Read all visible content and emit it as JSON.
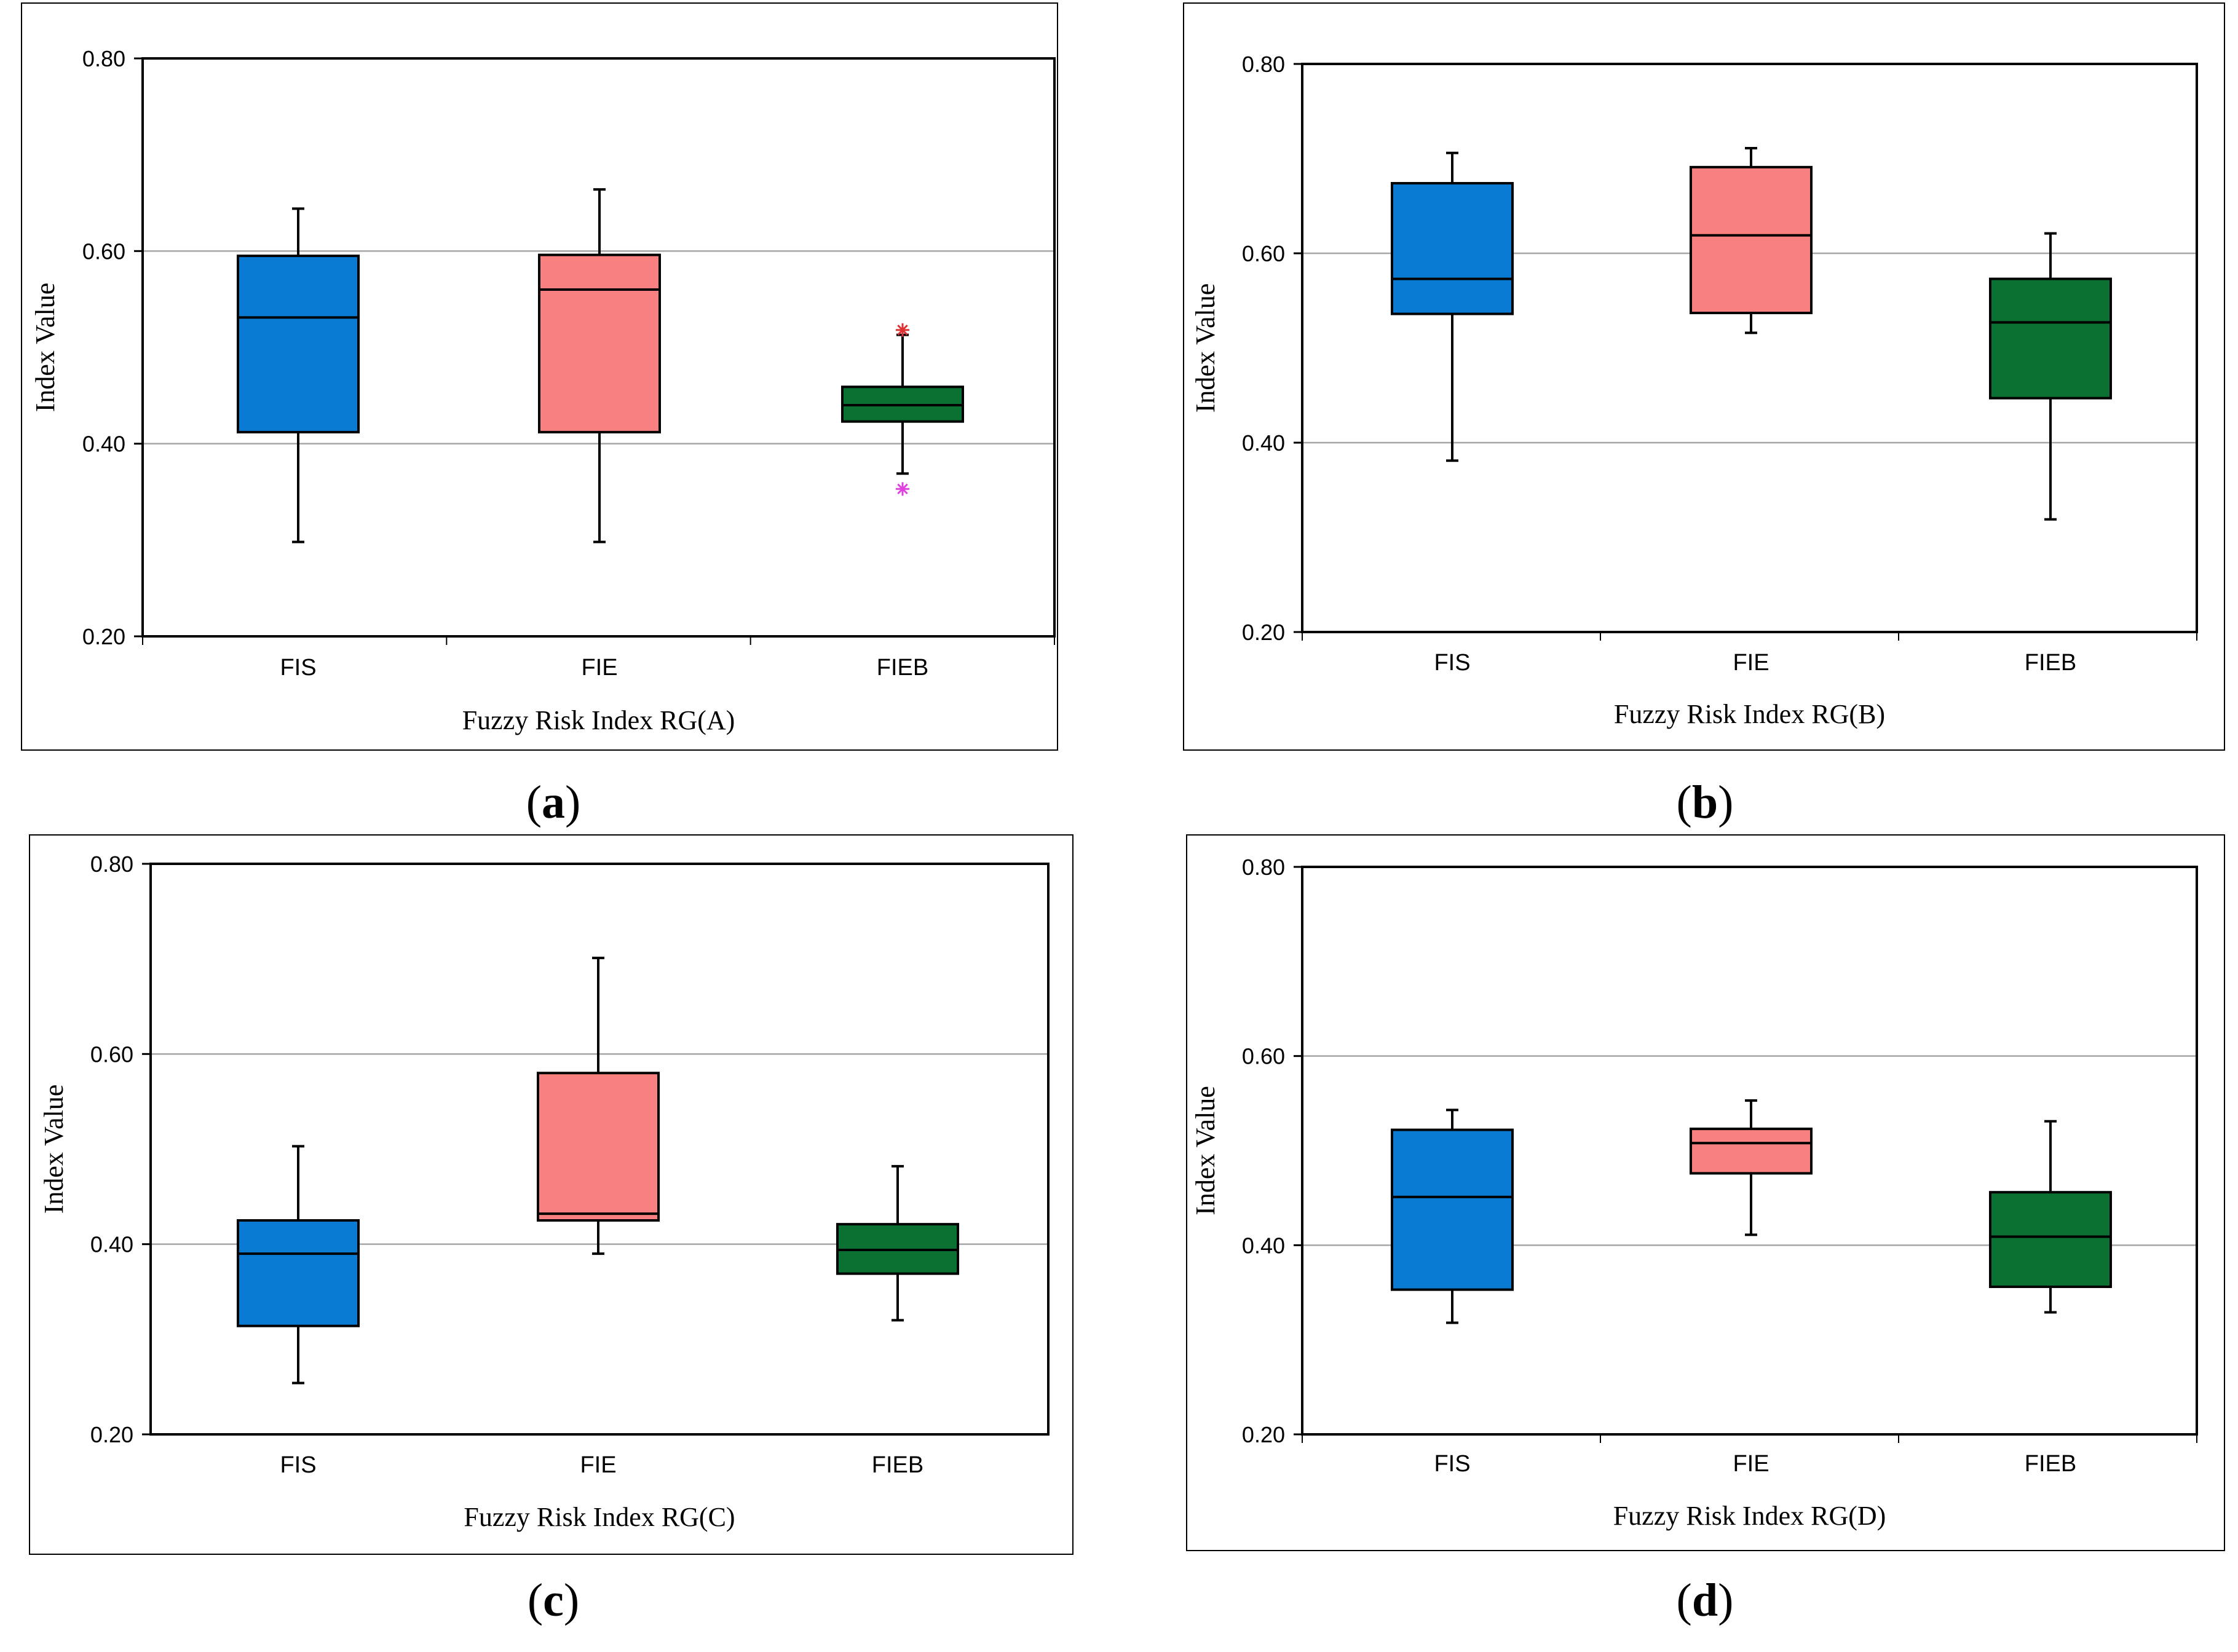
{
  "figure": {
    "panels": [
      "a",
      "b",
      "c",
      "d"
    ]
  },
  "colors": {
    "FIS": "#0a7bd2",
    "FIE": "#f88080",
    "FIEB": "#0a7132",
    "outlier_high": "#e03030",
    "outlier_low": "#e040e0",
    "gridline": "#a6a6a6",
    "axis": "#000000"
  },
  "chart_data": [
    {
      "type": "box",
      "panel_label": "a",
      "title": "",
      "xlabel": "Fuzzy Risk Index RG(A)",
      "ylabel": "Index Value",
      "ylim": [
        0.2,
        0.8
      ],
      "yticks": [
        "0.20",
        "0.40",
        "0.60",
        "0.80"
      ],
      "categories": [
        "FIS",
        "FIE",
        "FIEB"
      ],
      "series": [
        {
          "name": "FIS",
          "min": 0.298,
          "q1": 0.412,
          "median": 0.531,
          "q3": 0.595,
          "max": 0.644,
          "outliers": []
        },
        {
          "name": "FIE",
          "min": 0.298,
          "q1": 0.412,
          "median": 0.56,
          "q3": 0.596,
          "max": 0.664,
          "outliers": []
        },
        {
          "name": "FIEB",
          "min": 0.369,
          "q1": 0.423,
          "median": 0.44,
          "q3": 0.459,
          "max": 0.513,
          "outliers": [
            0.518,
            0.353
          ]
        }
      ],
      "grid": true,
      "xtick_dividers": true
    },
    {
      "type": "box",
      "panel_label": "b",
      "title": "",
      "xlabel": "Fuzzy Risk Index RG(B)",
      "ylabel": "Index Value",
      "ylim": [
        0.2,
        0.8
      ],
      "yticks": [
        "0.20",
        "0.40",
        "0.60",
        "0.80"
      ],
      "categories": [
        "FIS",
        "FIE",
        "FIEB"
      ],
      "series": [
        {
          "name": "FIS",
          "min": 0.381,
          "q1": 0.536,
          "median": 0.573,
          "q3": 0.674,
          "max": 0.706,
          "outliers": []
        },
        {
          "name": "FIE",
          "min": 0.516,
          "q1": 0.537,
          "median": 0.619,
          "q3": 0.691,
          "max": 0.711,
          "outliers": []
        },
        {
          "name": "FIEB",
          "min": 0.319,
          "q1": 0.447,
          "median": 0.527,
          "q3": 0.573,
          "max": 0.621,
          "outliers": []
        }
      ],
      "grid": true,
      "xtick_dividers": true
    },
    {
      "type": "box",
      "panel_label": "c",
      "title": "",
      "xlabel": "Fuzzy Risk Index RG(C)",
      "ylabel": "Index Value",
      "ylim": [
        0.2,
        0.8
      ],
      "yticks": [
        "0.20",
        "0.40",
        "0.60",
        "0.80"
      ],
      "categories": [
        "FIS",
        "FIE",
        "FIEB"
      ],
      "series": [
        {
          "name": "FIS",
          "min": 0.254,
          "q1": 0.314,
          "median": 0.39,
          "q3": 0.425,
          "max": 0.503,
          "outliers": []
        },
        {
          "name": "FIE",
          "min": 0.39,
          "q1": 0.425,
          "median": 0.432,
          "q3": 0.58,
          "max": 0.701,
          "outliers": []
        },
        {
          "name": "FIEB",
          "min": 0.32,
          "q1": 0.369,
          "median": 0.394,
          "q3": 0.421,
          "max": 0.482,
          "outliers": []
        }
      ],
      "grid": true,
      "xtick_dividers": false
    },
    {
      "type": "box",
      "panel_label": "d",
      "title": "",
      "xlabel": "Fuzzy Risk Index RG(D)",
      "ylabel": "Index Value",
      "ylim": [
        0.2,
        0.8
      ],
      "yticks": [
        "0.20",
        "0.40",
        "0.60",
        "0.80"
      ],
      "categories": [
        "FIS",
        "FIE",
        "FIEB"
      ],
      "series": [
        {
          "name": "FIS",
          "min": 0.318,
          "q1": 0.353,
          "median": 0.451,
          "q3": 0.522,
          "max": 0.543,
          "outliers": []
        },
        {
          "name": "FIE",
          "min": 0.411,
          "q1": 0.476,
          "median": 0.508,
          "q3": 0.523,
          "max": 0.553,
          "outliers": []
        },
        {
          "name": "FIEB",
          "min": 0.329,
          "q1": 0.356,
          "median": 0.409,
          "q3": 0.456,
          "max": 0.531,
          "outliers": []
        }
      ],
      "grid": true,
      "xtick_dividers": true
    }
  ]
}
